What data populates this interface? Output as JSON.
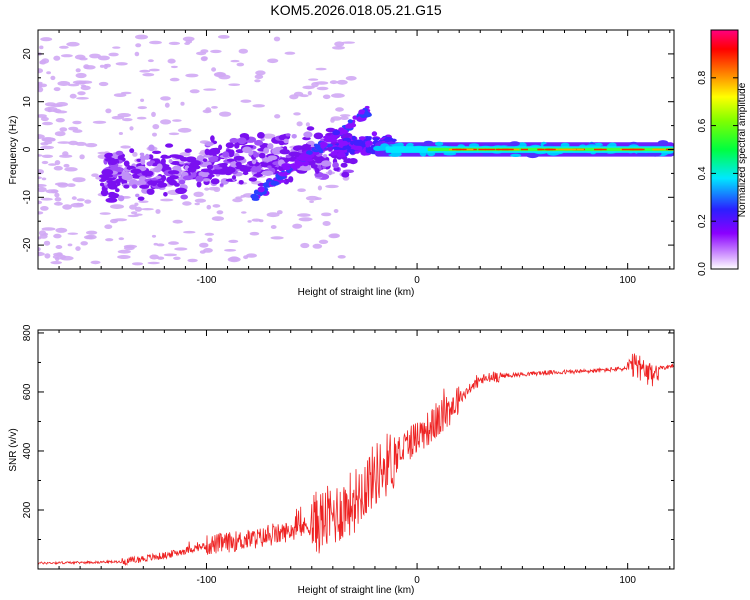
{
  "figure_title": "KOM5.2026.018.05.21.G15",
  "chart_data": [
    {
      "type": "heatmap",
      "title": "KOM5.2026.018.05.21.G15",
      "xlabel": "Height of straight line (km)",
      "ylabel": "Frequency (Hz)",
      "xlim": [
        -180,
        122
      ],
      "ylim": [
        -25,
        25
      ],
      "xticks": [
        -100,
        0,
        100
      ],
      "yticks": [
        -20,
        -10,
        0,
        10,
        20
      ],
      "colorbar": {
        "label": "Normalized spectral amplitude",
        "range": [
          0,
          1
        ],
        "ticks": [
          0.0,
          0.2,
          0.4,
          0.6,
          0.8
        ]
      },
      "description_values": {
        "ridge_x_start": -20,
        "ridge_x_end": 122,
        "ridge_freq": 0
      }
    },
    {
      "type": "line",
      "xlabel": "Height of straight line (km)",
      "ylabel": "SNR (v/v)",
      "xlim": [
        -180,
        122
      ],
      "ylim": [
        0,
        810
      ],
      "xticks": [
        -100,
        0,
        100
      ],
      "yticks": [
        200,
        400,
        600,
        800
      ],
      "series": [
        {
          "name": "SNR",
          "color": "#ee2222",
          "x": [
            -180,
            -160,
            -140,
            -120,
            -100,
            -90,
            -80,
            -70,
            -60,
            -50,
            -40,
            -30,
            -25,
            -20,
            -15,
            -10,
            -5,
            0,
            10,
            20,
            30,
            40,
            60,
            80,
            100,
            105,
            110,
            115,
            122
          ],
          "values": [
            20,
            22,
            25,
            45,
            80,
            90,
            100,
            110,
            130,
            150,
            180,
            230,
            280,
            320,
            350,
            380,
            420,
            450,
            500,
            580,
            640,
            655,
            665,
            670,
            680,
            690,
            650,
            680,
            690
          ]
        }
      ]
    }
  ]
}
